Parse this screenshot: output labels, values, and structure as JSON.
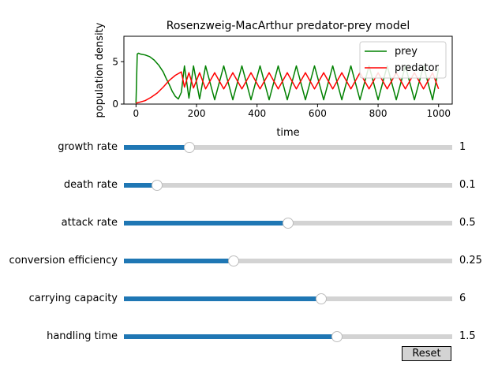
{
  "chart_data": {
    "type": "line",
    "title": "Rosenzweig-MacArthur predator-prey model",
    "xlabel": "time",
    "ylabel": "population density",
    "xlim": [
      -40,
      1045
    ],
    "ylim": [
      0,
      8
    ],
    "xticks": [
      0,
      200,
      400,
      600,
      800,
      1000
    ],
    "yticks": [
      0,
      5
    ],
    "legend_position": "top-right",
    "grid": false,
    "series": [
      {
        "name": "prey",
        "color": "#008000",
        "x": [
          0,
          4,
          8,
          15,
          30,
          45,
          60,
          75,
          90,
          100,
          110,
          120,
          130,
          140,
          150,
          160,
          175,
          190,
          210,
          230,
          260,
          290,
          320,
          350,
          380,
          410,
          440,
          470,
          500,
          530,
          560,
          590,
          620,
          650,
          680,
          710,
          740,
          770,
          800,
          830,
          860,
          890,
          920,
          950,
          980,
          1000
        ],
        "y": [
          0.1,
          5.9,
          6.0,
          5.9,
          5.8,
          5.6,
          5.2,
          4.6,
          3.8,
          3.0,
          2.3,
          1.5,
          0.9,
          0.6,
          1.4,
          4.5,
          0.7,
          4.5,
          0.6,
          4.5,
          0.5,
          4.5,
          0.5,
          4.5,
          0.5,
          4.5,
          0.5,
          4.5,
          0.5,
          4.5,
          0.5,
          4.5,
          0.5,
          4.5,
          0.5,
          4.5,
          0.5,
          4.5,
          0.5,
          4.5,
          0.5,
          4.5,
          0.5,
          4.5,
          0.5,
          4.2
        ]
      },
      {
        "name": "predator",
        "color": "#ff0000",
        "x": [
          0,
          10,
          30,
          50,
          70,
          90,
          110,
          130,
          150,
          160,
          175,
          190,
          210,
          230,
          260,
          290,
          320,
          350,
          380,
          410,
          440,
          470,
          500,
          530,
          560,
          590,
          620,
          650,
          680,
          710,
          740,
          770,
          800,
          830,
          860,
          890,
          920,
          950,
          980,
          1000
        ],
        "y": [
          0.1,
          0.2,
          0.4,
          0.8,
          1.3,
          2.0,
          2.8,
          3.4,
          3.8,
          2.0,
          3.7,
          1.9,
          3.7,
          1.8,
          3.7,
          1.8,
          3.7,
          1.8,
          3.7,
          1.8,
          3.7,
          1.8,
          3.7,
          1.8,
          3.7,
          1.8,
          3.7,
          1.8,
          3.7,
          1.8,
          3.7,
          1.8,
          3.7,
          1.8,
          3.7,
          1.8,
          3.7,
          1.8,
          3.7,
          1.8
        ]
      }
    ]
  },
  "sliders": [
    {
      "label": "growth rate",
      "value_text": "1",
      "fraction": 0.2
    },
    {
      "label": "death rate",
      "value_text": "0.1",
      "fraction": 0.1
    },
    {
      "label": "attack rate",
      "value_text": "0.5",
      "fraction": 0.5
    },
    {
      "label": "conversion efficiency",
      "value_text": "0.25",
      "fraction": 0.335
    },
    {
      "label": "carrying capacity",
      "value_text": "6",
      "fraction": 0.6
    },
    {
      "label": "handling time",
      "value_text": "1.5",
      "fraction": 0.65
    }
  ],
  "reset_label": "Reset",
  "colors": {
    "slider_fill": "#1f77b4",
    "slider_track": "#d3d3d3"
  }
}
